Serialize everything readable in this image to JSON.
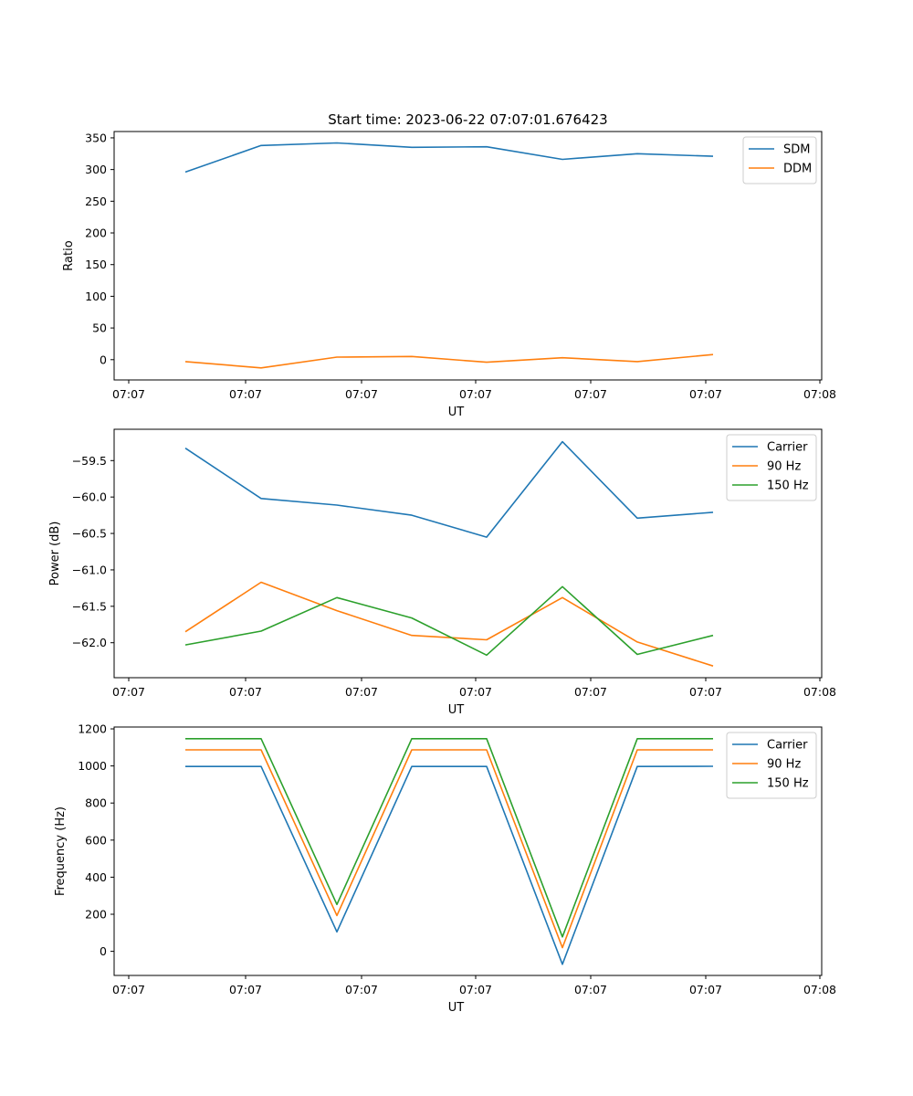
{
  "chart_data": [
    {
      "type": "line",
      "title": "Start time: 2023-06-22 07:07:01.676423",
      "xlabel": "UT",
      "ylabel": "Ratio",
      "x_tick_labels": [
        "07:07",
        "07:07",
        "07:07",
        "07:07",
        "07:07",
        "07:07",
        "07:08"
      ],
      "y_ticks": [
        0,
        50,
        100,
        150,
        200,
        250,
        300,
        350
      ],
      "ylim": [
        -32,
        360
      ],
      "grid": false,
      "legend_position": "top-right",
      "series": [
        {
          "name": "SDM",
          "color": "#1f77b4",
          "values": [
            296,
            338,
            342,
            335,
            336,
            316,
            325,
            321
          ]
        },
        {
          "name": "DDM",
          "color": "#ff7f0e",
          "values": [
            -3,
            -13,
            4,
            5,
            -4,
            3,
            -3,
            8
          ]
        }
      ]
    },
    {
      "type": "line",
      "title": "",
      "xlabel": "UT",
      "ylabel": "Power (dB)",
      "x_tick_labels": [
        "07:07",
        "07:07",
        "07:07",
        "07:07",
        "07:07",
        "07:07",
        "07:08"
      ],
      "y_ticks": [
        -62.0,
        -61.5,
        -61.0,
        -60.5,
        -60.0,
        -59.5
      ],
      "ylim": [
        -62.48,
        -59.07
      ],
      "grid": false,
      "legend_position": "top-right",
      "series": [
        {
          "name": "Carrier",
          "color": "#1f77b4",
          "values": [
            -59.33,
            -60.02,
            -60.11,
            -60.25,
            -60.55,
            -59.24,
            -60.29,
            -60.21
          ]
        },
        {
          "name": "90 Hz",
          "color": "#ff7f0e",
          "values": [
            -61.85,
            -61.17,
            -61.56,
            -61.9,
            -61.96,
            -61.38,
            -61.99,
            -62.32
          ]
        },
        {
          "name": "150 Hz",
          "color": "#2ca02c",
          "values": [
            -62.03,
            -61.84,
            -61.38,
            -61.66,
            -62.17,
            -61.23,
            -62.16,
            -61.9
          ]
        }
      ]
    },
    {
      "type": "line",
      "title": "",
      "xlabel": "UT",
      "ylabel": "Frequency (Hz)",
      "x_tick_labels": [
        "07:07",
        "07:07",
        "07:07",
        "07:07",
        "07:07",
        "07:07",
        "07:08"
      ],
      "y_ticks": [
        0,
        200,
        400,
        600,
        800,
        1000,
        1200
      ],
      "ylim": [
        -130,
        1210
      ],
      "grid": false,
      "legend_position": "top-right",
      "series": [
        {
          "name": "Carrier",
          "color": "#1f77b4",
          "values": [
            997,
            997,
            105,
            997,
            997,
            -70,
            997,
            998
          ]
        },
        {
          "name": "90 Hz",
          "color": "#ff7f0e",
          "values": [
            1087,
            1087,
            193,
            1087,
            1087,
            20,
            1087,
            1087
          ]
        },
        {
          "name": "150 Hz",
          "color": "#2ca02c",
          "values": [
            1147,
            1147,
            253,
            1147,
            1147,
            78,
            1147,
            1147
          ]
        }
      ]
    }
  ]
}
